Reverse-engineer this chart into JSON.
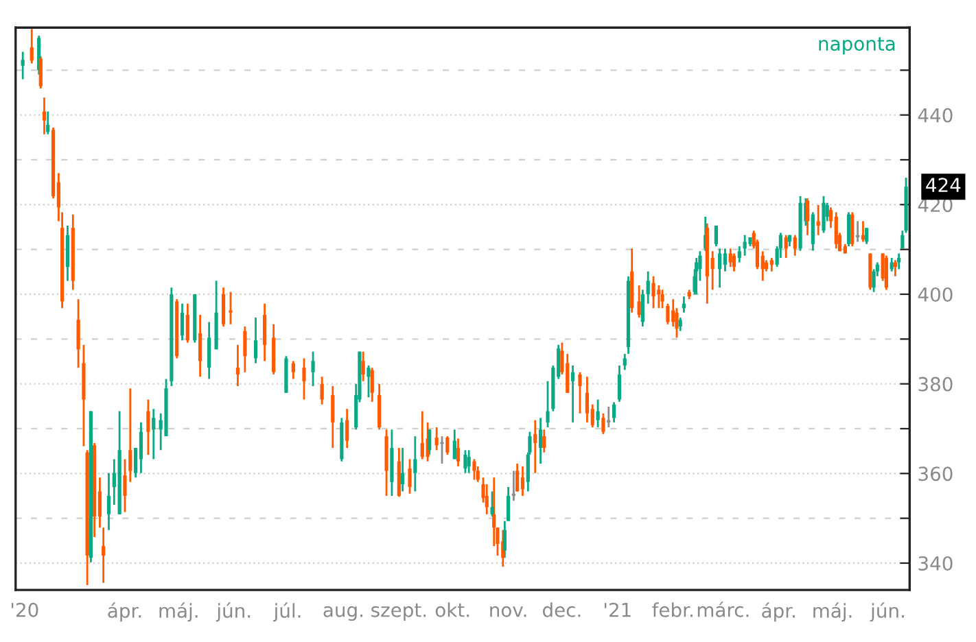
{
  "chart_data": {
    "type": "candlestick",
    "annotations": [
      "naponta",
      {
        "text": "424",
        "x": "2021-06-11",
        "y": 424
      }
    ],
    "x": [
      "2020-02-04",
      "2020-02-09",
      "2020-02-13",
      "2020-02-14",
      "2020-02-16",
      "2020-02-18",
      "2020-02-21",
      "2020-02-24",
      "2020-02-26",
      "2020-02-29",
      "2020-03-03",
      "2020-03-06",
      "2020-03-09",
      "2020-03-11",
      "2020-03-13",
      "2020-03-15",
      "2020-03-18",
      "2020-03-20",
      "2020-03-23",
      "2020-03-26",
      "2020-03-29",
      "2020-04-01",
      "2020-04-04",
      "2020-04-07",
      "2020-04-10",
      "2020-04-14",
      "2020-04-17",
      "2020-04-21",
      "2020-04-24",
      "2020-04-27",
      "2020-04-30",
      "2020-05-03",
      "2020-05-06",
      "2020-05-10",
      "2020-05-13",
      "2020-05-18",
      "2020-05-22",
      "2020-05-26",
      "2020-05-30",
      "2020-06-03",
      "2020-06-07",
      "2020-06-13",
      "2020-06-18",
      "2020-06-23",
      "2020-06-30",
      "2020-07-04",
      "2020-07-10",
      "2020-07-15",
      "2020-07-20",
      "2020-07-26",
      "2020-07-31",
      "2020-08-03",
      "2020-08-08",
      "2020-08-10",
      "2020-08-12",
      "2020-08-15",
      "2020-08-17",
      "2020-08-21",
      "2020-08-25",
      "2020-08-28",
      "2020-09-01",
      "2020-09-03",
      "2020-09-07",
      "2020-09-10",
      "2020-09-14",
      "2020-09-17",
      "2020-09-18",
      "2020-09-22",
      "2020-09-25",
      "2020-09-28",
      "2020-10-02",
      "2020-10-04",
      "2020-10-08",
      "2020-10-10",
      "2020-10-13",
      "2020-10-15",
      "2020-10-18",
      "2020-10-20",
      "2020-10-23",
      "2020-10-24",
      "2020-10-26",
      "2020-10-29",
      "2020-10-30",
      "2020-11-01",
      "2020-11-04",
      "2020-11-06",
      "2020-11-09",
      "2020-11-12",
      "2020-11-13",
      "2020-11-16",
      "2020-11-19",
      "2020-11-21",
      "2020-11-23",
      "2020-11-26",
      "2020-11-29",
      "2020-12-01",
      "2020-12-04",
      "2020-12-07",
      "2020-12-11",
      "2020-12-15",
      "2020-12-18",
      "2020-12-21",
      "2020-12-24",
      "2020-12-27",
      "2020-12-30",
      "2021-01-02",
      "2021-01-05",
      "2021-01-07",
      "2021-01-09",
      "2021-01-13",
      "2021-01-15",
      "2021-01-18",
      "2021-01-21",
      "2021-01-24",
      "2021-01-26",
      "2021-01-29",
      "2021-02-01",
      "2021-02-03",
      "2021-02-05",
      "2021-02-07",
      "2021-02-10",
      "2021-02-13",
      "2021-02-14",
      "2021-02-16",
      "2021-02-19",
      "2021-02-20",
      "2021-02-23",
      "2021-02-25",
      "2021-02-27",
      "2021-03-02",
      "2021-03-05",
      "2021-03-07",
      "2021-03-10",
      "2021-03-13",
      "2021-03-16",
      "2021-03-18",
      "2021-03-20",
      "2021-03-23",
      "2021-03-25",
      "2021-03-28",
      "2021-03-31",
      "2021-04-02",
      "2021-04-05",
      "2021-04-07",
      "2021-04-10",
      "2021-04-13",
      "2021-04-16",
      "2021-04-17",
      "2021-04-20",
      "2021-04-23",
      "2021-04-26",
      "2021-04-28",
      "2021-04-30",
      "2021-05-03",
      "2021-05-05",
      "2021-05-08",
      "2021-05-10",
      "2021-05-12",
      "2021-05-15",
      "2021-05-18",
      "2021-05-20",
      "2021-05-22",
      "2021-05-24",
      "2021-05-26",
      "2021-05-29",
      "2021-05-31",
      "2021-06-03",
      "2021-06-05",
      "2021-06-07",
      "2021-06-09",
      "2021-06-11"
    ],
    "ohlc": [
      [
        451.0,
        454.1,
        448.0,
        452.3
      ],
      [
        455.1,
        459.2,
        451.5,
        452.1
      ],
      [
        450.0,
        457.7,
        449.0,
        457.2
      ],
      [
        452.6,
        453.1,
        445.9,
        446.4
      ],
      [
        440.8,
        443.9,
        435.7,
        438.8
      ],
      [
        436.2,
        440.8,
        435.7,
        437.8
      ],
      [
        436.7,
        437.2,
        421.4,
        421.9
      ],
      [
        425.0,
        427.0,
        416.3,
        419.4
      ],
      [
        414.8,
        418.3,
        396.9,
        398.4
      ],
      [
        406.1,
        415.3,
        403.0,
        413.2
      ],
      [
        414.8,
        417.8,
        401.0,
        403.0
      ],
      [
        394.3,
        398.9,
        383.6,
        387.7
      ],
      [
        384.6,
        388.7,
        366.1,
        376.5
      ],
      [
        364.7,
        365.2,
        335.1,
        341.7
      ],
      [
        341.2,
        373.9,
        340.2,
        373.9
      ],
      [
        366.3,
        366.8,
        345.8,
        350.4
      ],
      [
        356.0,
        359.1,
        347.9,
        350.4
      ],
      [
        343.8,
        347.9,
        335.6,
        341.7
      ],
      [
        350.9,
        360.1,
        347.4,
        355.0
      ],
      [
        357.0,
        363.2,
        353.0,
        360.1
      ],
      [
        350.9,
        373.9,
        350.9,
        365.2
      ],
      [
        359.6,
        363.2,
        351.4,
        355.0
      ],
      [
        365.2,
        379.0,
        358.1,
        360.6
      ],
      [
        360.1,
        365.7,
        359.1,
        365.7
      ],
      [
        363.2,
        371.4,
        360.1,
        369.3
      ],
      [
        373.9,
        376.5,
        364.2,
        369.3
      ],
      [
        369.8,
        374.4,
        363.2,
        372.4
      ],
      [
        369.8,
        373.4,
        365.2,
        371.9
      ],
      [
        368.3,
        381.1,
        368.3,
        379.0
      ],
      [
        380.6,
        401.5,
        379.5,
        400.0
      ],
      [
        398.4,
        398.9,
        385.7,
        386.2
      ],
      [
        390.8,
        397.9,
        389.7,
        395.9
      ],
      [
        395.4,
        397.9,
        389.2,
        389.7
      ],
      [
        389.7,
        400.0,
        389.2,
        400.0
      ],
      [
        391.3,
        395.4,
        381.6,
        385.1
      ],
      [
        383.6,
        393.8,
        381.1,
        390.3
      ],
      [
        387.7,
        403.0,
        387.7,
        395.9
      ],
      [
        400.0,
        401.5,
        392.8,
        393.3
      ],
      [
        396.4,
        400.5,
        393.3,
        395.9
      ],
      [
        383.6,
        388.7,
        379.5,
        382.1
      ],
      [
        391.8,
        392.8,
        382.6,
        386.2
      ],
      [
        385.7,
        394.8,
        384.6,
        389.7
      ],
      [
        395.4,
        397.9,
        385.1,
        388.7
      ],
      [
        390.3,
        393.3,
        382.1,
        382.6
      ],
      [
        378.0,
        386.2,
        378.0,
        385.7
      ],
      [
        384.6,
        385.1,
        381.1,
        382.6
      ],
      [
        383.6,
        385.7,
        376.5,
        380.6
      ],
      [
        382.6,
        387.2,
        379.5,
        385.1
      ],
      [
        380.0,
        381.6,
        375.4,
        376.5
      ],
      [
        377.5,
        379.5,
        365.7,
        371.4
      ],
      [
        363.2,
        372.4,
        362.7,
        371.4
      ],
      [
        371.9,
        374.4,
        365.7,
        367.3
      ],
      [
        370.3,
        380.0,
        369.8,
        377.5
      ],
      [
        376.5,
        387.2,
        375.9,
        387.2
      ],
      [
        385.1,
        387.2,
        380.6,
        382.1
      ],
      [
        381.6,
        384.1,
        377.0,
        383.6
      ],
      [
        383.1,
        383.6,
        376.0,
        378.0
      ],
      [
        377.5,
        380.0,
        369.8,
        370.3
      ],
      [
        368.3,
        369.8,
        355.0,
        360.6
      ],
      [
        358.1,
        369.8,
        355.0,
        365.7
      ],
      [
        362.7,
        365.7,
        354.8,
        355.0
      ],
      [
        357.6,
        365.7,
        356.0,
        360.1
      ],
      [
        361.1,
        363.2,
        355.5,
        357.0
      ],
      [
        360.1,
        368.3,
        356.0,
        363.2
      ],
      [
        366.8,
        373.9,
        363.2,
        363.7
      ],
      [
        367.8,
        371.4,
        362.7,
        363.7
      ],
      [
        365.2,
        369.8,
        364.2,
        369.8
      ],
      [
        368.0,
        370.3,
        365.2,
        366.3
      ],
      [
        367.0,
        368.3,
        362.2,
        366.6
      ],
      [
        368.0,
        368.3,
        364.2,
        364.7
      ],
      [
        363.2,
        369.8,
        363.2,
        367.3
      ],
      [
        365.7,
        367.8,
        361.6,
        362.7
      ],
      [
        361.1,
        365.2,
        360.1,
        364.2
      ],
      [
        361.6,
        365.2,
        360.1,
        363.7
      ],
      [
        362.7,
        363.2,
        358.6,
        360.6
      ],
      [
        360.6,
        361.6,
        358.1,
        358.6
      ],
      [
        357.6,
        359.1,
        353.5,
        354.5
      ],
      [
        355.0,
        357.6,
        350.9,
        352.5
      ],
      [
        350.9,
        356.0,
        350.4,
        352.5
      ],
      [
        350.9,
        359.1,
        343.8,
        347.9
      ],
      [
        347.9,
        347.9,
        341.7,
        344.3
      ],
      [
        344.8,
        347.4,
        339.2,
        341.2
      ],
      [
        342.8,
        349.4,
        341.2,
        347.4
      ],
      [
        349.4,
        357.0,
        349.4,
        355.0
      ],
      [
        355.0,
        360.6,
        353.9,
        355.5
      ],
      [
        360.6,
        362.2,
        356.0,
        356.0
      ],
      [
        359.1,
        361.6,
        355.0,
        356.5
      ],
      [
        358.1,
        364.7,
        356.0,
        364.2
      ],
      [
        364.7,
        369.3,
        364.2,
        368.3
      ],
      [
        368.8,
        371.9,
        360.1,
        366.8
      ],
      [
        365.7,
        372.4,
        362.2,
        369.8
      ],
      [
        368.3,
        369.8,
        364.7,
        365.7
      ],
      [
        371.4,
        380.6,
        370.3,
        373.9
      ],
      [
        374.4,
        384.1,
        373.9,
        383.6
      ],
      [
        381.6,
        388.7,
        381.1,
        387.9
      ],
      [
        387.4,
        389.2,
        382.1,
        382.6
      ],
      [
        384.6,
        386.7,
        378.0,
        378.0
      ],
      [
        380.6,
        384.1,
        371.4,
        382.6
      ],
      [
        382.1,
        382.6,
        373.4,
        379.5
      ],
      [
        378.0,
        381.6,
        371.4,
        373.4
      ],
      [
        374.4,
        375.4,
        370.3,
        370.8
      ],
      [
        371.9,
        376.5,
        370.3,
        373.9
      ],
      [
        372.4,
        373.4,
        368.8,
        369.3
      ],
      [
        371.4,
        374.9,
        370.3,
        371.9
      ],
      [
        372.4,
        375.9,
        371.4,
        375.4
      ],
      [
        376.5,
        384.1,
        376.0,
        382.1
      ],
      [
        384.1,
        386.7,
        383.1,
        385.7
      ],
      [
        388.2,
        404.0,
        386.7,
        403.0
      ],
      [
        405.1,
        410.2,
        395.9,
        396.9
      ],
      [
        398.4,
        402.0,
        394.8,
        395.4
      ],
      [
        393.8,
        401.0,
        392.8,
        400.0
      ],
      [
        400.0,
        405.1,
        397.9,
        403.0
      ],
      [
        402.5,
        404.0,
        396.9,
        399.5
      ],
      [
        401.0,
        402.0,
        396.9,
        400.0
      ],
      [
        400.0,
        401.0,
        396.9,
        398.4
      ],
      [
        397.4,
        397.9,
        393.3,
        393.8
      ],
      [
        396.4,
        398.9,
        392.8,
        393.8
      ],
      [
        395.9,
        396.9,
        390.3,
        392.3
      ],
      [
        392.8,
        394.8,
        391.8,
        394.3
      ],
      [
        396.9,
        399.5,
        395.9,
        397.9
      ],
      [
        400.5,
        401.0,
        398.9,
        399.5
      ],
      [
        400.5,
        405.6,
        399.9,
        404.0
      ],
      [
        405.1,
        408.1,
        399.9,
        407.1
      ],
      [
        405.6,
        409.6,
        403.0,
        408.6
      ],
      [
        410.2,
        417.3,
        409.7,
        413.2
      ],
      [
        414.8,
        415.8,
        397.9,
        404.0
      ],
      [
        408.1,
        409.6,
        401.0,
        405.6
      ],
      [
        411.2,
        415.3,
        410.7,
        415.3
      ],
      [
        405.6,
        410.2,
        401.5,
        409.1
      ],
      [
        406.6,
        410.2,
        405.1,
        409.1
      ],
      [
        409.1,
        410.2,
        406.1,
        407.1
      ],
      [
        408.6,
        409.1,
        405.1,
        406.1
      ],
      [
        408.1,
        410.7,
        407.1,
        409.6
      ],
      [
        410.2,
        413.2,
        408.6,
        411.7
      ],
      [
        411.2,
        412.7,
        410.7,
        412.7
      ],
      [
        413.7,
        414.2,
        410.2,
        410.7
      ],
      [
        411.7,
        412.2,
        405.6,
        406.1
      ],
      [
        408.6,
        409.6,
        403.0,
        405.6
      ],
      [
        407.1,
        407.6,
        405.1,
        405.6
      ],
      [
        407.6,
        408.1,
        405.1,
        406.6
      ],
      [
        406.6,
        410.7,
        406.1,
        410.2
      ],
      [
        410.2,
        413.7,
        408.1,
        413.2
      ],
      [
        412.7,
        413.2,
        408.1,
        410.2
      ],
      [
        411.7,
        413.2,
        410.7,
        413.2
      ],
      [
        412.7,
        413.2,
        408.6,
        410.2
      ],
      [
        410.2,
        421.9,
        409.7,
        420.4
      ],
      [
        416.3,
        421.4,
        415.3,
        420.4
      ],
      [
        420.9,
        421.4,
        413.2,
        416.3
      ],
      [
        411.2,
        418.3,
        409.7,
        417.8
      ],
      [
        416.3,
        419.9,
        413.2,
        415.3
      ],
      [
        414.2,
        421.9,
        413.7,
        420.4
      ],
      [
        417.3,
        420.4,
        416.3,
        419.9
      ],
      [
        418.8,
        419.4,
        414.8,
        416.3
      ],
      [
        417.3,
        418.3,
        410.2,
        411.2
      ],
      [
        413.2,
        413.7,
        409.6,
        409.6
      ],
      [
        410.7,
        411.2,
        409.1,
        409.1
      ],
      [
        411.2,
        418.3,
        410.7,
        417.8
      ],
      [
        417.8,
        418.3,
        410.7,
        411.2
      ],
      [
        413.2,
        416.3,
        411.7,
        412.7
      ],
      [
        413.2,
        416.3,
        411.7,
        412.2
      ],
      [
        411.7,
        414.8,
        411.2,
        414.8
      ],
      [
        409.1,
        409.1,
        401.0,
        401.5
      ],
      [
        401.5,
        405.6,
        400.5,
        405.1
      ],
      [
        405.1,
        407.1,
        404.0,
        406.6
      ],
      [
        409.1,
        409.1,
        403.0,
        403.5
      ],
      [
        408.1,
        408.6,
        401.0,
        401.5
      ],
      [
        405.6,
        408.1,
        405.1,
        407.1
      ],
      [
        407.1,
        407.6,
        404.0,
        406.1
      ],
      [
        407.1,
        409.1,
        405.6,
        408.1
      ],
      [
        410.2,
        414.2,
        410.2,
        413.2
      ],
      [
        414.2,
        426.0,
        413.7,
        424.0
      ]
    ],
    "colors": [
      "#0aa884",
      "#ff5a00",
      "#0aa884",
      "#ff5a00",
      "#ff5a00",
      "#0aa884",
      "#ff5a00",
      "#ff5a00",
      "#ff5a00",
      "#0aa884",
      "#ff5a00",
      "#ff5a00",
      "#ff5a00",
      "#ff5a00",
      "#0aa884",
      "#ff5a00",
      "#ff5a00",
      "#ff5a00",
      "#0aa884",
      "#0aa884",
      "#0aa884",
      "#ff5a00",
      "#ff5a00",
      "#0aa884",
      "#0aa884",
      "#ff5a00",
      "#0aa884",
      "#0aa884",
      "#0aa884",
      "#0aa884",
      "#ff5a00",
      "#0aa884",
      "#ff5a00",
      "#0aa884",
      "#ff5a00",
      "#0aa884",
      "#0aa884",
      "#ff5a00",
      "#ff5a00",
      "#ff5a00",
      "#ff5a00",
      "#0aa884",
      "#ff5a00",
      "#ff5a00",
      "#0aa884",
      "#ff5a00",
      "#ff5a00",
      "#0aa884",
      "#ff5a00",
      "#ff5a00",
      "#0aa884",
      "#ff5a00",
      "#0aa884",
      "#0aa884",
      "#ff5a00",
      "#0aa884",
      "#ff5a00",
      "#ff5a00",
      "#ff5a00",
      "#0aa884",
      "#ff5a00",
      "#0aa884",
      "#ff5a00",
      "#0aa884",
      "#ff5a00",
      "#ff5a00",
      "#0aa884",
      "#ff5a00",
      "#8c8c8c",
      "#ff5a00",
      "#0aa884",
      "#ff5a00",
      "#0aa884",
      "#0aa884",
      "#ff5a00",
      "#ff5a00",
      "#ff5a00",
      "#ff5a00",
      "#0aa884",
      "#ff5a00",
      "#ff5a00",
      "#ff5a00",
      "#0aa884",
      "#0aa884",
      "#8c8c8c",
      "#ff5a00",
      "#ff5a00",
      "#0aa884",
      "#0aa884",
      "#ff5a00",
      "#0aa884",
      "#ff5a00",
      "#0aa884",
      "#0aa884",
      "#0aa884",
      "#ff5a00",
      "#ff5a00",
      "#0aa884",
      "#ff5a00",
      "#ff5a00",
      "#ff5a00",
      "#0aa884",
      "#ff5a00",
      "#8c8c8c",
      "#0aa884",
      "#0aa884",
      "#0aa884",
      "#0aa884",
      "#ff5a00",
      "#ff5a00",
      "#0aa884",
      "#0aa884",
      "#ff5a00",
      "#ff5a00",
      "#ff5a00",
      "#ff5a00",
      "#ff5a00",
      "#ff5a00",
      "#0aa884",
      "#0aa884",
      "#ff5a00",
      "#0aa884",
      "#0aa884",
      "#0aa884",
      "#0aa884",
      "#ff5a00",
      "#ff5a00",
      "#0aa884",
      "#0aa884",
      "#0aa884",
      "#ff5a00",
      "#ff5a00",
      "#0aa884",
      "#0aa884",
      "#0aa884",
      "#ff5a00",
      "#ff5a00",
      "#ff5a00",
      "#ff5a00",
      "#ff5a00",
      "#0aa884",
      "#0aa884",
      "#ff5a00",
      "#0aa884",
      "#ff5a00",
      "#0aa884",
      "#0aa884",
      "#ff5a00",
      "#0aa884",
      "#ff5a00",
      "#0aa884",
      "#0aa884",
      "#ff5a00",
      "#ff5a00",
      "#ff5a00",
      "#ff5a00",
      "#0aa884",
      "#ff5a00",
      "#8c8c8c",
      "#ff5a00",
      "#0aa884",
      "#ff5a00",
      "#0aa884",
      "#0aa884",
      "#ff5a00",
      "#ff5a00",
      "#0aa884",
      "#ff5a00",
      "#0aa884",
      "#0aa884",
      "#0aa884"
    ],
    "xlim": [
      "2020-01-31",
      "2021-06-13"
    ],
    "xticks": [
      {
        "value": "2020-02-05",
        "label": "'20"
      },
      {
        "value": "2020-04-01",
        "label": "ápr."
      },
      {
        "value": "2020-05-01",
        "label": "máj."
      },
      {
        "value": "2020-06-01",
        "label": "jún."
      },
      {
        "value": "2020-07-01",
        "label": "júl."
      },
      {
        "value": "2020-08-01",
        "label": "aug."
      },
      {
        "value": "2020-09-01",
        "label": "szept."
      },
      {
        "value": "2020-10-01",
        "label": "okt."
      },
      {
        "value": "2020-11-01",
        "label": "nov."
      },
      {
        "value": "2020-12-01",
        "label": "dec."
      },
      {
        "value": "2021-01-01",
        "label": "'21"
      },
      {
        "value": "2021-02-01",
        "label": "febr."
      },
      {
        "value": "2021-03-01",
        "label": "márc."
      },
      {
        "value": "2021-04-01",
        "label": "ápr."
      },
      {
        "value": "2021-05-01",
        "label": "máj."
      },
      {
        "value": "2021-06-01",
        "label": "jún."
      }
    ],
    "ylim": [
      334,
      459.5
    ],
    "yticks": [
      340,
      {
        "value": 350,
        "label": null
      },
      360,
      {
        "value": 370,
        "label": null
      },
      380,
      {
        "value": 390,
        "label": null
      },
      400,
      {
        "value": 410,
        "label": null
      },
      420,
      {
        "value": 430,
        "label": null
      },
      440,
      {
        "value": 450,
        "label": null
      }
    ],
    "grid": "y"
  }
}
